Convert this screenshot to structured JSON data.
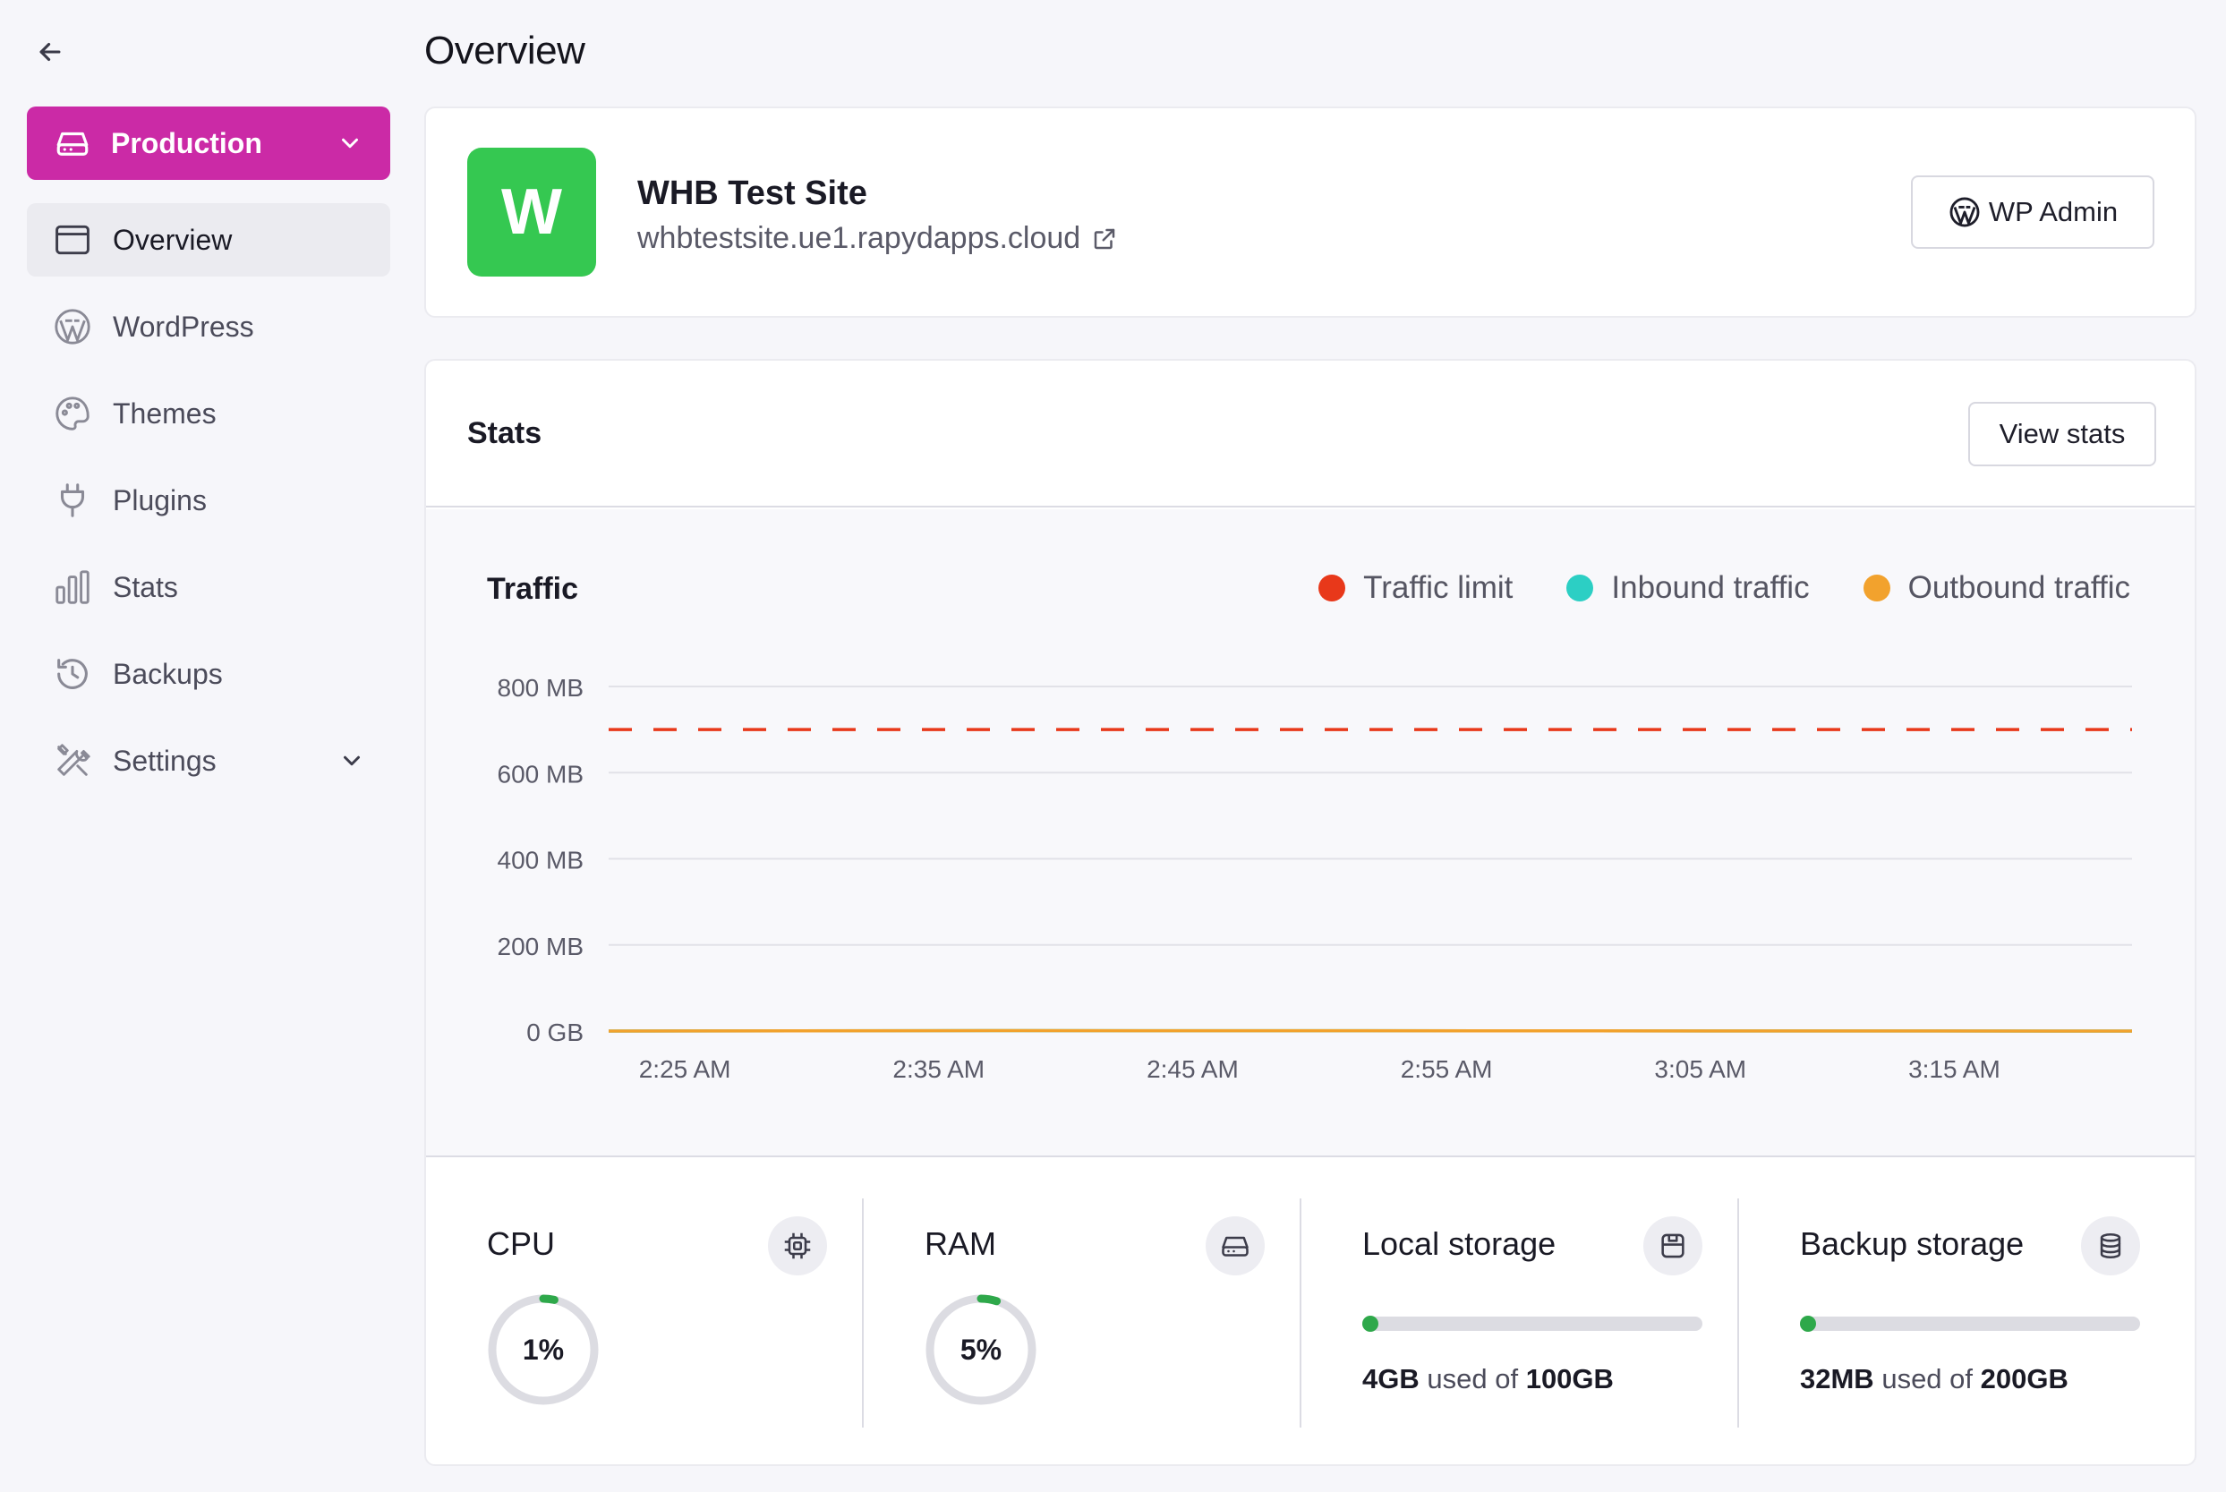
{
  "page": {
    "title": "Overview"
  },
  "sidebar": {
    "back_icon": "arrow-left-icon",
    "environment": {
      "label": "Production",
      "icon": "server-icon",
      "color": "#cb2aa6"
    },
    "items": [
      {
        "label": "Overview",
        "icon": "browser-window-icon",
        "active": true
      },
      {
        "label": "WordPress",
        "icon": "wordpress-icon"
      },
      {
        "label": "Themes",
        "icon": "palette-icon"
      },
      {
        "label": "Plugins",
        "icon": "plug-icon"
      },
      {
        "label": "Stats",
        "icon": "bar-chart-icon"
      },
      {
        "label": "Backups",
        "icon": "history-icon"
      },
      {
        "label": "Settings",
        "icon": "tools-icon",
        "has_submenu": true
      }
    ]
  },
  "site": {
    "initial": "W",
    "logo_color": "#35c851",
    "name": "WHB Test Site",
    "url": "whbtestsite.ue1.rapydapps.cloud",
    "wp_admin_label": "WP Admin"
  },
  "stats": {
    "title": "Stats",
    "view_stats_label": "View stats",
    "traffic": {
      "title": "Traffic",
      "legend": [
        {
          "label": "Traffic limit",
          "color": "#e8381a"
        },
        {
          "label": "Inbound traffic",
          "color": "#2ccfc4"
        },
        {
          "label": "Outbound traffic",
          "color": "#f2a22d"
        }
      ]
    },
    "metrics": {
      "cpu": {
        "label": "CPU",
        "icon": "cpu-icon",
        "value_text": "1%",
        "percent": 1
      },
      "ram": {
        "label": "RAM",
        "icon": "memory-icon",
        "value_text": "5%",
        "percent": 5
      },
      "local_storage": {
        "label": "Local storage",
        "icon": "disk-icon",
        "used": "4GB",
        "used_of": "used of",
        "total": "100GB",
        "fraction": 0.04
      },
      "backup_storage": {
        "label": "Backup storage",
        "icon": "database-icon",
        "used": "32MB",
        "used_of": "used of",
        "total": "200GB",
        "fraction": 0.0002
      }
    }
  },
  "chart_data": {
    "type": "line",
    "title": "Traffic",
    "xlabel": "",
    "ylabel": "",
    "y_ticks": [
      "800 MB",
      "600 MB",
      "400 MB",
      "200 MB",
      "0 GB"
    ],
    "y_tick_values": [
      800,
      600,
      400,
      200,
      0
    ],
    "ylim": [
      0,
      800
    ],
    "y_unit": "MB",
    "x_ticks": [
      "2:25 AM",
      "2:35 AM",
      "2:45 AM",
      "2:55 AM",
      "3:05 AM",
      "3:15 AM"
    ],
    "x_range": [
      "2:22 AM",
      "3:22 AM"
    ],
    "grid": true,
    "legend_position": "top-right",
    "series": [
      {
        "name": "Traffic limit",
        "style": "dashed",
        "color": "#e8381a",
        "x": [
          "2:22 AM",
          "3:22 AM"
        ],
        "values": [
          700,
          700
        ]
      },
      {
        "name": "Inbound traffic",
        "style": "solid",
        "color": "#2ccfc4",
        "x": [
          "2:22 AM",
          "2:37 AM",
          "3:22 AM"
        ],
        "values": [
          0,
          1,
          0
        ]
      },
      {
        "name": "Outbound traffic",
        "style": "solid",
        "color": "#f2a22d",
        "x": [
          "2:22 AM",
          "2:37 AM",
          "3:22 AM"
        ],
        "values": [
          0,
          1,
          0
        ]
      }
    ]
  }
}
